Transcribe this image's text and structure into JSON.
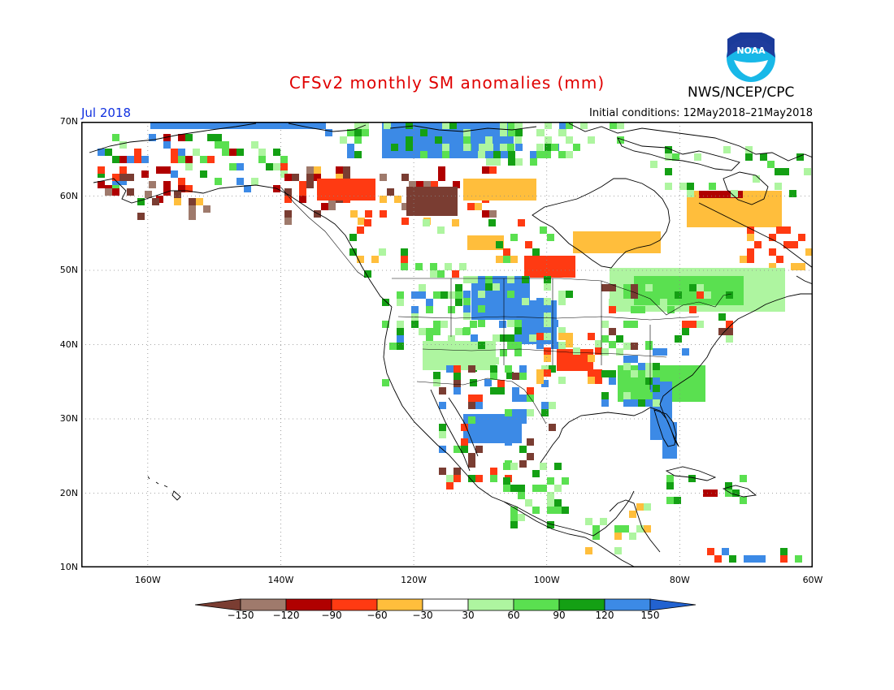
{
  "header": {
    "title": "CFSv2 monthly SM anomalies (mm)",
    "organization": "NWS/NCEP/CPC",
    "logo_text": "NOAA",
    "valid_month": "Jul 2018",
    "initial_conditions": "Initial conditions: 12May2018–21May2018"
  },
  "axes": {
    "lat_labels": [
      "70N",
      "60N",
      "50N",
      "40N",
      "30N",
      "20N",
      "10N"
    ],
    "lon_labels": [
      "160W",
      "140W",
      "120W",
      "100W",
      "80W",
      "60W"
    ],
    "lon_range": [
      -170,
      -60
    ],
    "lat_range": [
      10,
      70
    ],
    "grid": "dotted"
  },
  "legend": {
    "boundaries": [
      "−150",
      "−120",
      "−90",
      "−60",
      "−30",
      "30",
      "60",
      "90",
      "120",
      "150"
    ],
    "colors": [
      "#7a3d32",
      "#9f7a6c",
      "#b00000",
      "#ff3a12",
      "#ffbe3c",
      "#ffffff",
      "#aef5a0",
      "#5ae050",
      "#14a014",
      "#3c8ae6",
      "#2262d0"
    ]
  },
  "colors": {
    "title": "#e00000",
    "valid_month": "#1030e0",
    "map_border": "#000000"
  }
}
